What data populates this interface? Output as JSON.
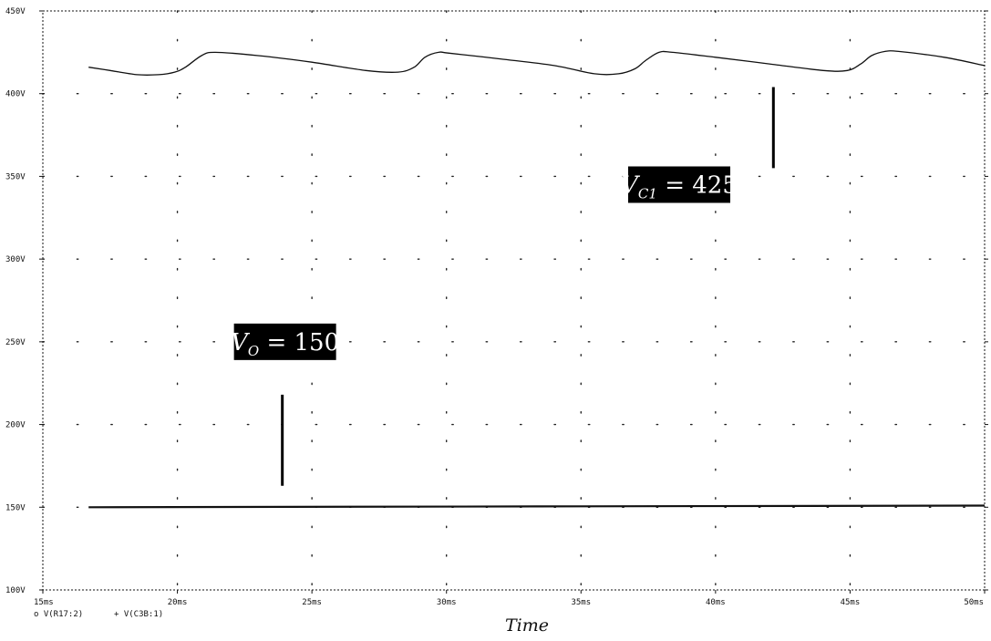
{
  "chart_data": {
    "type": "line",
    "title": "",
    "xlabel": "Time",
    "ylabel": "",
    "xlim": [
      15,
      50
    ],
    "ylim": [
      100,
      450
    ],
    "grid": true,
    "x_ticks": [
      15,
      20,
      25,
      30,
      35,
      40,
      45,
      50
    ],
    "x_tick_labels": [
      "15ms",
      "20ms",
      "25ms",
      "30ms",
      "35ms",
      "40ms",
      "45ms",
      "50ms"
    ],
    "y_ticks": [
      100,
      150,
      200,
      250,
      300,
      350,
      400,
      450
    ],
    "y_tick_labels": [
      "100V",
      "150V",
      "200V",
      "250V",
      "300V",
      "350V",
      "400V",
      "450V"
    ],
    "legend": [
      {
        "marker": "o",
        "label": "V(R17:2)"
      },
      {
        "marker": "+",
        "label": "V(C3B:1)"
      }
    ],
    "series": [
      {
        "name": "V(C3B:1)",
        "x": [
          16.7,
          17.5,
          18.5,
          19.3,
          19.9,
          20.3,
          20.9,
          21.4,
          23,
          25,
          27,
          28.2,
          28.8,
          29.2,
          29.7,
          30.1,
          32,
          34,
          35.5,
          36.4,
          37,
          37.4,
          37.9,
          38.4,
          40,
          42,
          44,
          44.9,
          45.4,
          45.8,
          46.3,
          46.8,
          48.5,
          50
        ],
        "y": [
          416,
          414,
          411.5,
          411.5,
          413,
          416,
          423,
          425,
          423,
          419,
          414,
          413,
          416,
          422,
          425,
          424.5,
          421,
          417,
          412,
          412,
          415,
          420,
          425,
          425,
          422,
          418,
          414,
          414,
          418,
          423,
          425.5,
          425.5,
          422,
          417
        ]
      },
      {
        "name": "V(R17:2)",
        "x": [
          16.7,
          50
        ],
        "y": [
          150,
          151
        ]
      }
    ],
    "annotations": [
      {
        "var": "V",
        "sub": "C1",
        "value": "425",
        "box_x": 38.65,
        "box_y": 345,
        "line_x": 42.15,
        "line_y": [
          355,
          404
        ]
      },
      {
        "var": "V",
        "sub": "O",
        "value": "150",
        "box_x": 24.0,
        "box_y": 250,
        "line_x": 23.9,
        "line_y": [
          163,
          218
        ]
      }
    ]
  }
}
